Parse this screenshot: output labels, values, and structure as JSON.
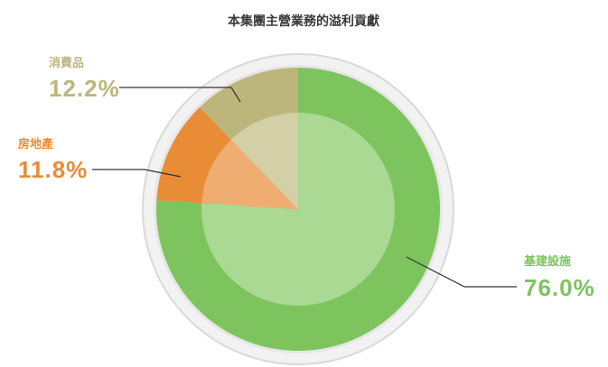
{
  "chart_data": {
    "type": "pie",
    "title": "本集團主營業務的溢利貢獻",
    "slices": [
      {
        "label": "基建設施",
        "value_text": "76.0%",
        "value": 76.0,
        "color": "#7dc45e",
        "inner_color": "#a9d992"
      },
      {
        "label": "房地產",
        "value_text": "11.8%",
        "value": 11.8,
        "color": "#e98c36",
        "inner_color": "#f0ad72"
      },
      {
        "label": "消費品",
        "value_text": "12.2%",
        "value": 12.2,
        "color": "#bcb67d",
        "inner_color": "#d3cfa6"
      }
    ],
    "legend": "callout labels"
  }
}
